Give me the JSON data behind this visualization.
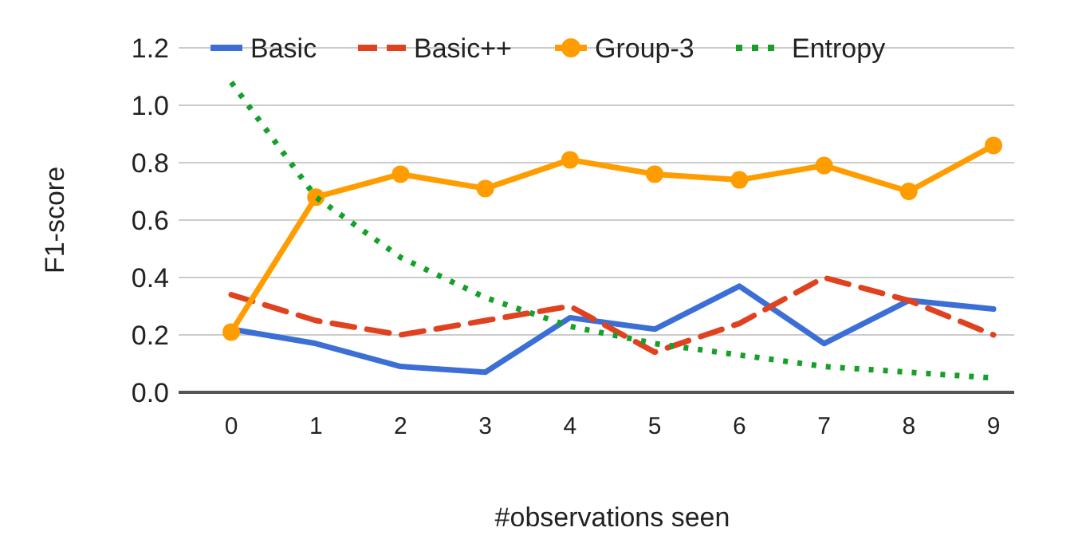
{
  "chart_data": {
    "type": "line",
    "xlabel": "#observations seen",
    "ylabel": "F1-score",
    "categories": [
      "0",
      "1",
      "2",
      "3",
      "4",
      "5",
      "6",
      "7",
      "8",
      "9"
    ],
    "ylim": [
      0,
      1.2
    ],
    "yticks": [
      {
        "value": 0,
        "label": "0.0"
      },
      {
        "value": 0.2,
        "label": "0.2"
      },
      {
        "value": 0.4,
        "label": "0.4"
      },
      {
        "value": 0.6,
        "label": "0.6"
      },
      {
        "value": 0.8,
        "label": "0.8"
      },
      {
        "value": 1,
        "label": "1.0"
      },
      {
        "value": 1.2,
        "label": "1.2"
      }
    ],
    "grid": "y",
    "legend": "top",
    "series": [
      {
        "name": "Basic",
        "color": "#3c6fd6",
        "line_style": "solid",
        "marker": "none",
        "values": [
          0.22,
          0.17,
          0.09,
          0.07,
          0.26,
          0.22,
          0.37,
          0.17,
          0.32,
          0.29
        ]
      },
      {
        "name": "Basic++",
        "color": "#e0411f",
        "line_style": "dashed",
        "marker": "none",
        "values": [
          0.34,
          0.25,
          0.2,
          0.25,
          0.3,
          0.14,
          0.24,
          0.4,
          0.32,
          0.2
        ]
      },
      {
        "name": "Group-3",
        "color": "#ff9d00",
        "line_style": "solid",
        "marker": "circle",
        "values": [
          0.21,
          0.68,
          0.76,
          0.71,
          0.81,
          0.76,
          0.74,
          0.79,
          0.7,
          0.86
        ]
      },
      {
        "name": "Entropy",
        "color": "#16a02a",
        "line_style": "dotted",
        "marker": "none",
        "values": [
          1.08,
          0.68,
          0.47,
          0.33,
          0.23,
          0.17,
          0.13,
          0.09,
          0.07,
          0.05
        ]
      }
    ]
  }
}
